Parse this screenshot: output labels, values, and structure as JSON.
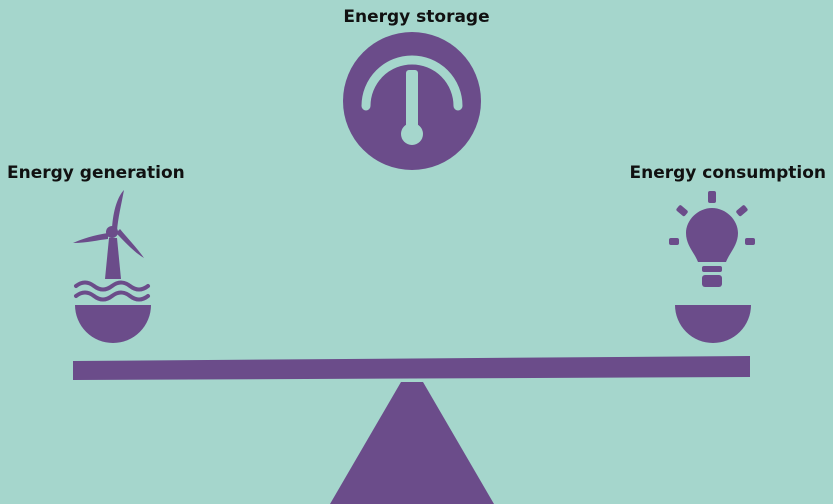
{
  "labels": {
    "storage": "Energy storage",
    "generation": "Energy generation",
    "consumption": "Energy consumption"
  },
  "icons": {
    "storage": "gauge-icon",
    "generation": "wind-turbine-icon",
    "consumption": "light-bulb-icon"
  },
  "colors": {
    "background": "#a5d6cc",
    "icon": "#6b4c8a",
    "text": "#111111"
  }
}
